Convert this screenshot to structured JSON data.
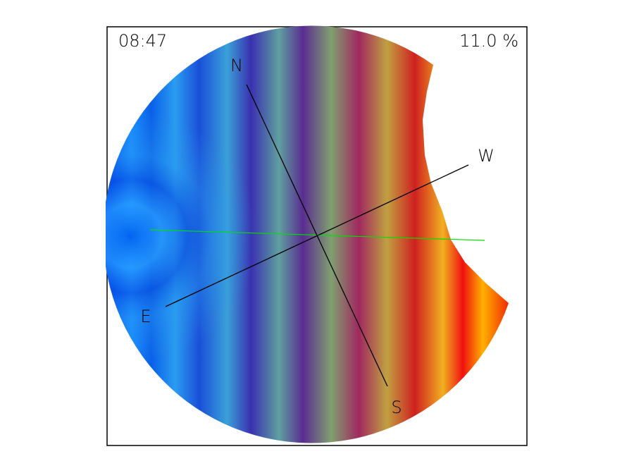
{
  "header": {
    "time": "08:47",
    "coverage": "11.0 %"
  },
  "directions": {
    "north": "N",
    "south": "S",
    "east": "E",
    "west": "W"
  }
}
